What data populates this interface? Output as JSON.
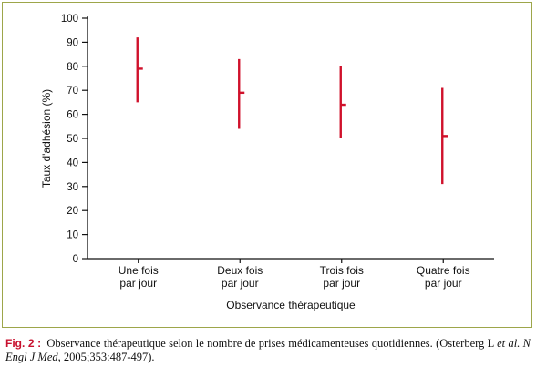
{
  "chart_data": {
    "type": "error-range",
    "categories": [
      [
        "Une fois",
        "par jour"
      ],
      [
        "Deux fois",
        "par jour"
      ],
      [
        "Trois fois",
        "par jour"
      ],
      [
        "Quatre fois",
        "par jour"
      ]
    ],
    "series": [
      {
        "values": [
          79,
          69,
          64,
          51
        ],
        "low": [
          65,
          54,
          50,
          31
        ],
        "high": [
          92,
          83,
          80,
          71
        ]
      }
    ],
    "xlabel": "Observance thérapeutique",
    "ylabel": "Taux d'adhésion (%)",
    "ylim": [
      0,
      100
    ],
    "yticks": [
      "0",
      "10",
      "20",
      "30",
      "40",
      "50",
      "60",
      "70",
      "80",
      "90",
      "100"
    ],
    "grid": false,
    "colors": {
      "series": "#d0112b",
      "frame": "#9da64a",
      "caption_label": "#c8102e"
    }
  },
  "caption": {
    "label": "Fig. 2 :",
    "text": "Observance thérapeutique selon le nombre de prises médicamenteuses quotidiennes.",
    "citation_prefix": "(Osterberg L ",
    "citation_italic": "et al. N Engl J Med",
    "citation_suffix": ", 2005;353:487-497)."
  }
}
